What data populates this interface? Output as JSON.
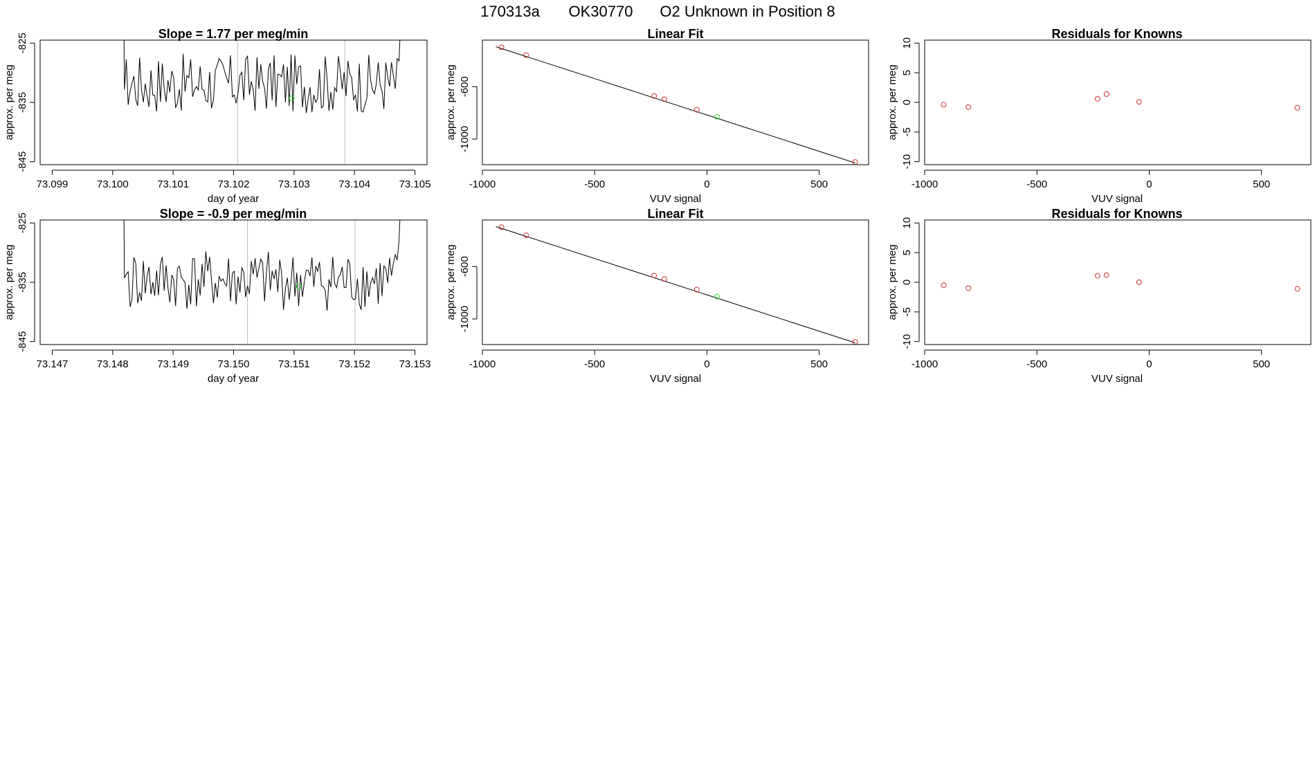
{
  "header": {
    "run_id": "170313a",
    "tank_id": "OK30770",
    "description": "O2 Unknown in Position  8"
  },
  "colors": {
    "line": "#000000",
    "known_point": "#cc3333",
    "unknown_point": "#33dd33",
    "marker_line": "#bbbbbb",
    "frame": "#000000"
  },
  "chart_data": [
    {
      "type": "line",
      "title": "Slope =  1.77  per meg/min",
      "xlabel": "day of year",
      "ylabel": "approx. per meg",
      "xlim": [
        73.0988,
        73.1052
      ],
      "ylim": [
        -845.5,
        -824.5
      ],
      "xticks": [
        "73.099",
        "73.100",
        "73.101",
        "73.102",
        "73.103",
        "73.104",
        "73.105"
      ],
      "yticks": [
        "-825",
        "-835",
        "-845"
      ],
      "ytick_values": [
        -825,
        -835,
        -845
      ],
      "xtick_values": [
        73.099,
        73.1,
        73.101,
        73.102,
        73.103,
        73.104,
        73.105
      ],
      "series_start": 73.1001,
      "series_end": 73.1048,
      "series_base": -831.8,
      "series_seed": 17,
      "vlines": [
        73.10207,
        73.10384
      ],
      "unknown_point": {
        "x": 73.10296,
        "y": -834.3
      }
    },
    {
      "type": "scatter",
      "title": "Linear Fit",
      "xlabel": "VUV signal",
      "ylabel": "approx. per meg",
      "xlim": [
        -1000,
        720
      ],
      "ylim": [
        -1195,
        -245
      ],
      "xticks": [
        "-1000",
        "-500",
        "0",
        "500"
      ],
      "xtick_values": [
        -1000,
        -500,
        0,
        500
      ],
      "yticks": [
        "-600",
        "-1000"
      ],
      "ytick_values": [
        -600,
        -1000
      ],
      "fit_line": {
        "x": [
          -940,
          660
        ],
        "y": [
          -295,
          -1182
        ]
      },
      "known_points": {
        "x": [
          -915,
          -805,
          -235,
          -190,
          -45,
          660
        ],
        "y": [
          -300,
          -360,
          -671,
          -696,
          -776,
          -1175
        ]
      },
      "unknown_point": {
        "x": 45,
        "y": -830
      }
    },
    {
      "type": "scatter",
      "title": "Residuals for Knowns",
      "xlabel": "VUV signal",
      "ylabel": "approx. per meg",
      "xlim": [
        -1000,
        720
      ],
      "ylim": [
        -10.5,
        10.5
      ],
      "xticks": [
        "-1000",
        "-500",
        "0",
        "500"
      ],
      "xtick_values": [
        -1000,
        -500,
        0,
        500
      ],
      "yticks": [
        "10",
        "5",
        "0",
        "-5",
        "-10"
      ],
      "ytick_values": [
        10,
        5,
        0,
        -5,
        -10
      ],
      "known_points": {
        "x": [
          -915,
          -805,
          -230,
          -190,
          -45,
          660
        ],
        "y": [
          -0.4,
          -0.8,
          0.6,
          1.4,
          0.1,
          -0.9
        ]
      }
    },
    {
      "type": "line",
      "title": "Slope =  -0.9  per meg/min",
      "xlabel": "day of year",
      "ylabel": "approx. per meg",
      "xlim": [
        73.1468,
        73.1532
      ],
      "ylim": [
        -845.5,
        -824.5
      ],
      "xticks": [
        "73.147",
        "73.148",
        "73.149",
        "73.150",
        "73.151",
        "73.152",
        "73.153"
      ],
      "xtick_values": [
        73.147,
        73.148,
        73.149,
        73.15,
        73.151,
        73.152,
        73.153
      ],
      "yticks": [
        "-825",
        "-835",
        "-845"
      ],
      "ytick_values": [
        -825,
        -835,
        -845
      ],
      "series_start": 73.1481,
      "series_end": 73.1528,
      "series_base": -834.8,
      "series_seed": 41,
      "vlines": [
        73.15023,
        73.15201
      ],
      "unknown_point": {
        "x": 73.15108,
        "y": -835.7
      }
    },
    {
      "type": "scatter",
      "title": "Linear Fit",
      "xlabel": "VUV signal",
      "ylabel": "approx. per meg",
      "xlim": [
        -1000,
        720
      ],
      "ylim": [
        -1195,
        -245
      ],
      "xticks": [
        "-1000",
        "-500",
        "0",
        "500"
      ],
      "xtick_values": [
        -1000,
        -500,
        0,
        500
      ],
      "yticks": [
        "-600",
        "-1000"
      ],
      "ytick_values": [
        -600,
        -1000
      ],
      "fit_line": {
        "x": [
          -940,
          660
        ],
        "y": [
          -295,
          -1182
        ]
      },
      "known_points": {
        "x": [
          -915,
          -805,
          -235,
          -190,
          -45,
          660
        ],
        "y": [
          -300,
          -362,
          -669,
          -695,
          -776,
          -1175
        ]
      },
      "unknown_point": {
        "x": 45,
        "y": -830
      }
    },
    {
      "type": "scatter",
      "title": "Residuals for Knowns",
      "xlabel": "VUV signal",
      "ylabel": "approx. per meg",
      "xlim": [
        -1000,
        720
      ],
      "ylim": [
        -10.5,
        10.5
      ],
      "xticks": [
        "-1000",
        "-500",
        "0",
        "500"
      ],
      "xtick_values": [
        -1000,
        -500,
        0,
        500
      ],
      "yticks": [
        "10",
        "5",
        "0",
        "-5",
        "-10"
      ],
      "ytick_values": [
        10,
        5,
        0,
        -5,
        -10
      ],
      "known_points": {
        "x": [
          -915,
          -805,
          -230,
          -190,
          -45,
          660
        ],
        "y": [
          -0.5,
          -1.0,
          1.1,
          1.2,
          0.0,
          -1.1
        ]
      }
    }
  ]
}
